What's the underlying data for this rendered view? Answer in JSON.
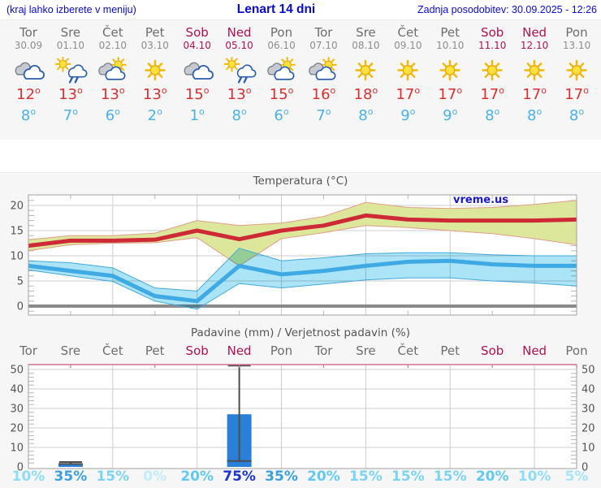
{
  "header": {
    "left_note": "(kraj lahko izberete v meniju)",
    "title": "Lenart 14 dni",
    "updated": "Zadnja posodobitev: 30.09.2025 - 12:26"
  },
  "degree_symbol": "o",
  "colors": {
    "header_blue": "#0a0ad0",
    "weekend": "#b0134f",
    "day_gray": "#6d6d6d",
    "date_gray": "#8d8d8d",
    "tmax_red": "#dd2f2f",
    "tmin_blue": "#4ab1ea",
    "chart_text": "#555555",
    "watermark_blue": "#1818cc"
  },
  "days": [
    {
      "name": "Tor",
      "date": "30.09",
      "weekend": false,
      "icon": "cloudy",
      "tmax": "12",
      "tmin": "8",
      "prob": "10%",
      "prob_color": "#8edcf5"
    },
    {
      "name": "Sre",
      "date": "01.10",
      "weekend": false,
      "icon": "sun-cloud-rain",
      "tmax": "13",
      "tmin": "7",
      "prob": "35%",
      "prob_color": "#3aa0de"
    },
    {
      "name": "Čet",
      "date": "02.10",
      "weekend": false,
      "icon": "sun-cloud",
      "tmax": "13",
      "tmin": "6",
      "prob": "15%",
      "prob_color": "#7cd4f1"
    },
    {
      "name": "Pet",
      "date": "03.10",
      "weekend": false,
      "icon": "sunny",
      "tmax": "13",
      "tmin": "2",
      "prob": "0%",
      "prob_color": "#c2ecfa"
    },
    {
      "name": "Sob",
      "date": "04.10",
      "weekend": true,
      "icon": "cloudy",
      "tmax": "15",
      "tmin": "1",
      "prob": "20%",
      "prob_color": "#64c9ee"
    },
    {
      "name": "Ned",
      "date": "05.10",
      "weekend": true,
      "icon": "sun-cloud-rain",
      "tmax": "13",
      "tmin": "8",
      "prob": "75%",
      "prob_color": "#1d35cf"
    },
    {
      "name": "Pon",
      "date": "06.10",
      "weekend": false,
      "icon": "sun-cloud",
      "tmax": "15",
      "tmin": "6",
      "prob": "35%",
      "prob_color": "#3aa0de"
    },
    {
      "name": "Tor",
      "date": "07.10",
      "weekend": false,
      "icon": "sun-cloud",
      "tmax": "16",
      "tmin": "7",
      "prob": "20%",
      "prob_color": "#64c9ee"
    },
    {
      "name": "Sre",
      "date": "08.10",
      "weekend": false,
      "icon": "sunny",
      "tmax": "18",
      "tmin": "8",
      "prob": "15%",
      "prob_color": "#7cd4f1"
    },
    {
      "name": "Čet",
      "date": "09.10",
      "weekend": false,
      "icon": "sunny",
      "tmax": "17",
      "tmin": "9",
      "prob": "15%",
      "prob_color": "#7cd4f1"
    },
    {
      "name": "Pet",
      "date": "10.10",
      "weekend": false,
      "icon": "sunny",
      "tmax": "17",
      "tmin": "9",
      "prob": "15%",
      "prob_color": "#7cd4f1"
    },
    {
      "name": "Sob",
      "date": "11.10",
      "weekend": true,
      "icon": "sunny",
      "tmax": "17",
      "tmin": "8",
      "prob": "20%",
      "prob_color": "#64c9ee"
    },
    {
      "name": "Ned",
      "date": "12.10",
      "weekend": true,
      "icon": "sunny",
      "tmax": "17",
      "tmin": "8",
      "prob": "10%",
      "prob_color": "#8edcf5"
    },
    {
      "name": "Pon",
      "date": "13.10",
      "weekend": false,
      "icon": "sunny",
      "tmax": "17",
      "tmin": "8",
      "prob": "5%",
      "prob_color": "#a8e3f8"
    }
  ],
  "chart_data": [
    {
      "type": "line",
      "title": "Temperatura (°C)",
      "watermark": "vreme.us",
      "categories": [
        "Tor 30.09",
        "Sre 01.10",
        "Čet 02.10",
        "Pet 03.10",
        "Sob 04.10",
        "Ned 05.10",
        "Pon 06.10",
        "Tor 07.10",
        "Sre 08.10",
        "Čet 09.10",
        "Pet 10.10",
        "Sob 11.10",
        "Ned 12.10",
        "Pon 13.10"
      ],
      "series": [
        {
          "name": "max_temp",
          "values": [
            12,
            13,
            13,
            13.2,
            15,
            13.3,
            15,
            16,
            18,
            17.2,
            17,
            17,
            17,
            17.2
          ]
        },
        {
          "name": "max_band_upper",
          "values": [
            13.2,
            14,
            14,
            14.5,
            17,
            16,
            16.5,
            17.8,
            20.6,
            19.6,
            19.4,
            19.6,
            20.2,
            21
          ]
        },
        {
          "name": "max_band_lower",
          "values": [
            11,
            12.2,
            12.5,
            12.6,
            13.6,
            8,
            13.4,
            14.6,
            16,
            15.6,
            15,
            14.4,
            13.4,
            12.2
          ]
        },
        {
          "name": "min_temp",
          "values": [
            8,
            7,
            6,
            2,
            1,
            8,
            6.3,
            7,
            8,
            8.8,
            9,
            8.3,
            8,
            8
          ]
        },
        {
          "name": "min_band_upper",
          "values": [
            9,
            8.6,
            7.6,
            3.6,
            3,
            11.5,
            9,
            9.6,
            10.4,
            10.6,
            10.6,
            10.2,
            10,
            10
          ]
        },
        {
          "name": "min_band_lower",
          "values": [
            7.2,
            6,
            4.9,
            1,
            -0.6,
            4.5,
            3.6,
            4.4,
            5.2,
            5.6,
            5.6,
            5,
            4.6,
            4
          ]
        }
      ],
      "yticks": [
        0,
        5,
        10,
        15,
        20
      ],
      "ylim": [
        -1.8,
        22.1
      ],
      "grid": true,
      "colors": {
        "max_line": "#cd2936",
        "max_band_fill": "#dce79b",
        "max_band_edge": "#e29d85",
        "min_line": "#3ea9e2",
        "min_band_fill": "#ace4f7",
        "min_band_edge": "#41a8da",
        "zero_line": "#8a8a8a",
        "grid_line": "#cccccc",
        "plot_border": "#a0a0a0"
      }
    },
    {
      "type": "bar",
      "title": "Padavine (mm) / Verjetnost padavin (%)",
      "categories": [
        "Tor",
        "Sre",
        "Čet",
        "Pet",
        "Sob",
        "Ned",
        "Pon",
        "Tor",
        "Sre",
        "Čet",
        "Pet",
        "Sob",
        "Ned",
        "Pon"
      ],
      "values": [
        0,
        1.2,
        0,
        0,
        0,
        27,
        0,
        0,
        0,
        0,
        0,
        0,
        0,
        0
      ],
      "whiskers": [
        {
          "index": 1,
          "min": 1.5,
          "max": 2.5
        },
        {
          "index": 5,
          "min": 3,
          "max": 52
        }
      ],
      "probabilities": [
        "10%",
        "35%",
        "15%",
        "0%",
        "20%",
        "75%",
        "35%",
        "20%",
        "15%",
        "15%",
        "15%",
        "20%",
        "10%",
        "5%"
      ],
      "yticks": [
        0,
        10,
        20,
        30,
        40,
        50
      ],
      "ylim": [
        -0.8,
        52.5
      ],
      "grid": true,
      "colors": {
        "bar_fill": "#2a80d8",
        "whisker": "#4d4d4d",
        "top_border": "#d4708e",
        "grid_line": "#cccccc",
        "plot_border": "#a0a0a0"
      }
    }
  ]
}
